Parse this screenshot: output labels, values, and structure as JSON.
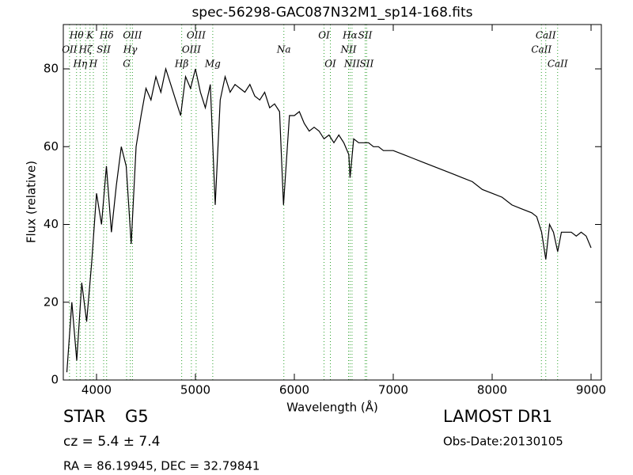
{
  "chart_data": {
    "type": "line",
    "title": "spec-56298-GAC087N32M1_sp14-168.fits",
    "xlabel": "Wavelength (Å)",
    "ylabel": "Flux (relative)",
    "color": "#000000",
    "line_color": "#2ca02c",
    "xlim": [
      3664,
      9104
    ],
    "ylim": [
      0,
      91.4
    ],
    "xticks": [
      4000,
      5000,
      6000,
      7000,
      8000,
      9000
    ],
    "yticks": [
      0,
      20,
      40,
      60,
      80
    ],
    "x": [
      3700,
      3750,
      3800,
      3850,
      3900,
      3950,
      4000,
      4050,
      4100,
      4150,
      4200,
      4250,
      4300,
      4350,
      4400,
      4450,
      4500,
      4550,
      4600,
      4650,
      4700,
      4750,
      4800,
      4850,
      4900,
      4950,
      5000,
      5050,
      5100,
      5150,
      5200,
      5250,
      5300,
      5350,
      5400,
      5450,
      5500,
      5550,
      5600,
      5650,
      5700,
      5750,
      5800,
      5850,
      5890,
      5950,
      6000,
      6050,
      6100,
      6150,
      6200,
      6250,
      6300,
      6350,
      6400,
      6450,
      6500,
      6550,
      6563,
      6600,
      6650,
      6700,
      6750,
      6800,
      6850,
      6900,
      6950,
      7000,
      7100,
      7200,
      7300,
      7400,
      7500,
      7600,
      7700,
      7800,
      7900,
      8000,
      8100,
      8200,
      8300,
      8400,
      8450,
      8500,
      8542,
      8580,
      8620,
      8662,
      8700,
      8750,
      8800,
      8850,
      8900,
      8950,
      9000
    ],
    "values": [
      2,
      20,
      5,
      25,
      15,
      30,
      48,
      40,
      55,
      38,
      50,
      60,
      55,
      35,
      60,
      68,
      75,
      72,
      78,
      74,
      80,
      76,
      72,
      68,
      78,
      75,
      80,
      74,
      70,
      76,
      45,
      72,
      78,
      74,
      76,
      75,
      74,
      76,
      73,
      72,
      74,
      70,
      71,
      69,
      45,
      68,
      68,
      69,
      66,
      64,
      65,
      64,
      62,
      63,
      61,
      63,
      61,
      58,
      52,
      62,
      61,
      61,
      61,
      60,
      60,
      59,
      59,
      59,
      58,
      57,
      56,
      55,
      54,
      53,
      52,
      51,
      49,
      48,
      47,
      45,
      44,
      43,
      42,
      38,
      31,
      40,
      38,
      33,
      38,
      38,
      38,
      37,
      38,
      37,
      34
    ],
    "annotations": [
      {
        "x": 3727,
        "label": "OII"
      },
      {
        "x": 3798,
        "label": "Hθ"
      },
      {
        "x": 3835,
        "label": "Hη"
      },
      {
        "x": 3889,
        "label": "Hζ"
      },
      {
        "x": 3934,
        "label": "K"
      },
      {
        "x": 3968,
        "label": "H"
      },
      {
        "x": 4072,
        "label": "SII"
      },
      {
        "x": 4102,
        "label": "Hδ"
      },
      {
        "x": 4304,
        "label": "G"
      },
      {
        "x": 4341,
        "label": "Hγ"
      },
      {
        "x": 4363,
        "label": "OIII"
      },
      {
        "x": 4861,
        "label": "Hβ"
      },
      {
        "x": 4959,
        "label": "OIII"
      },
      {
        "x": 5007,
        "label": "OIII"
      },
      {
        "x": 5175,
        "label": "Mg"
      },
      {
        "x": 5894,
        "label": "Na"
      },
      {
        "x": 6300,
        "label": "OI"
      },
      {
        "x": 6364,
        "label": "OI"
      },
      {
        "x": 6548,
        "label": "NII"
      },
      {
        "x": 6563,
        "label": "Hα"
      },
      {
        "x": 6583,
        "label": "NII"
      },
      {
        "x": 6716,
        "label": "SII"
      },
      {
        "x": 6731,
        "label": "SII"
      },
      {
        "x": 8498,
        "label": "CaII"
      },
      {
        "x": 8542,
        "label": "CaII"
      },
      {
        "x": 8662,
        "label": "CaII"
      }
    ],
    "info": {
      "class": "STAR",
      "subclass": "G5",
      "cz": "cz = 5.4 ± 7.4",
      "coords": "RA = 86.19945, DEC = 32.79841",
      "survey": "LAMOST DR1",
      "date": "Obs-Date:20130105"
    }
  }
}
